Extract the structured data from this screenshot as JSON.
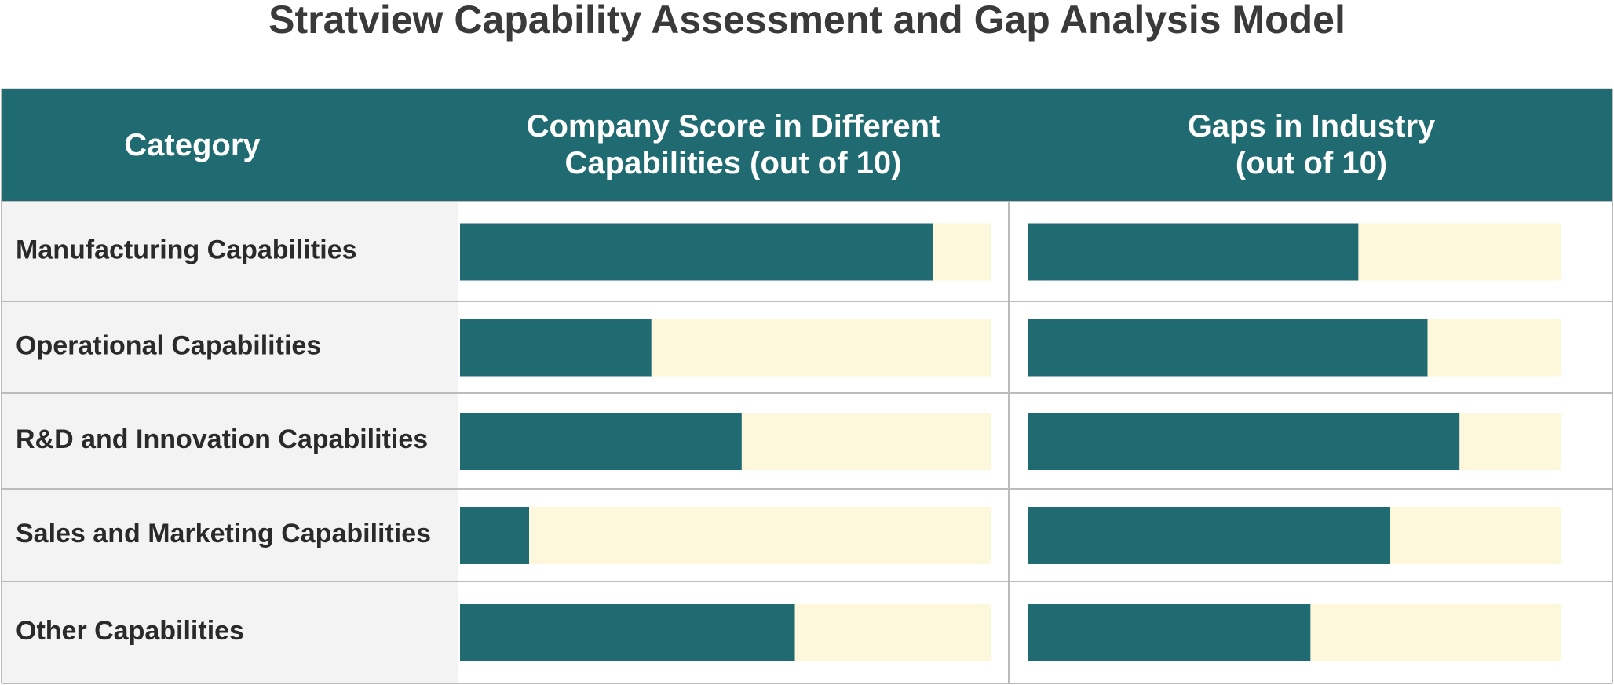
{
  "chart_data": {
    "type": "bar",
    "title": "Stratview Capability Assessment and Gap Analysis Model",
    "category_label": "Category",
    "categories": [
      "Manufacturing Capabilities",
      "Operational Capabilities",
      "R&D and Innovation Capabilities",
      "Sales and Marketing Capabilities",
      "Other Capabilities"
    ],
    "xlim": [
      0,
      10
    ],
    "track_color": "#fdf8dc",
    "header_color": "#206b71",
    "series": [
      {
        "name": "Company Score in Different\nCapabilities (out of 10)",
        "color": "#206b71",
        "values": [
          8.9,
          3.6,
          5.3,
          1.3,
          6.3
        ]
      },
      {
        "name": "Gaps in Industry\n(out of 10)",
        "color": "#206b71",
        "values": [
          6.2,
          7.5,
          8.1,
          6.8,
          5.3
        ]
      }
    ]
  }
}
